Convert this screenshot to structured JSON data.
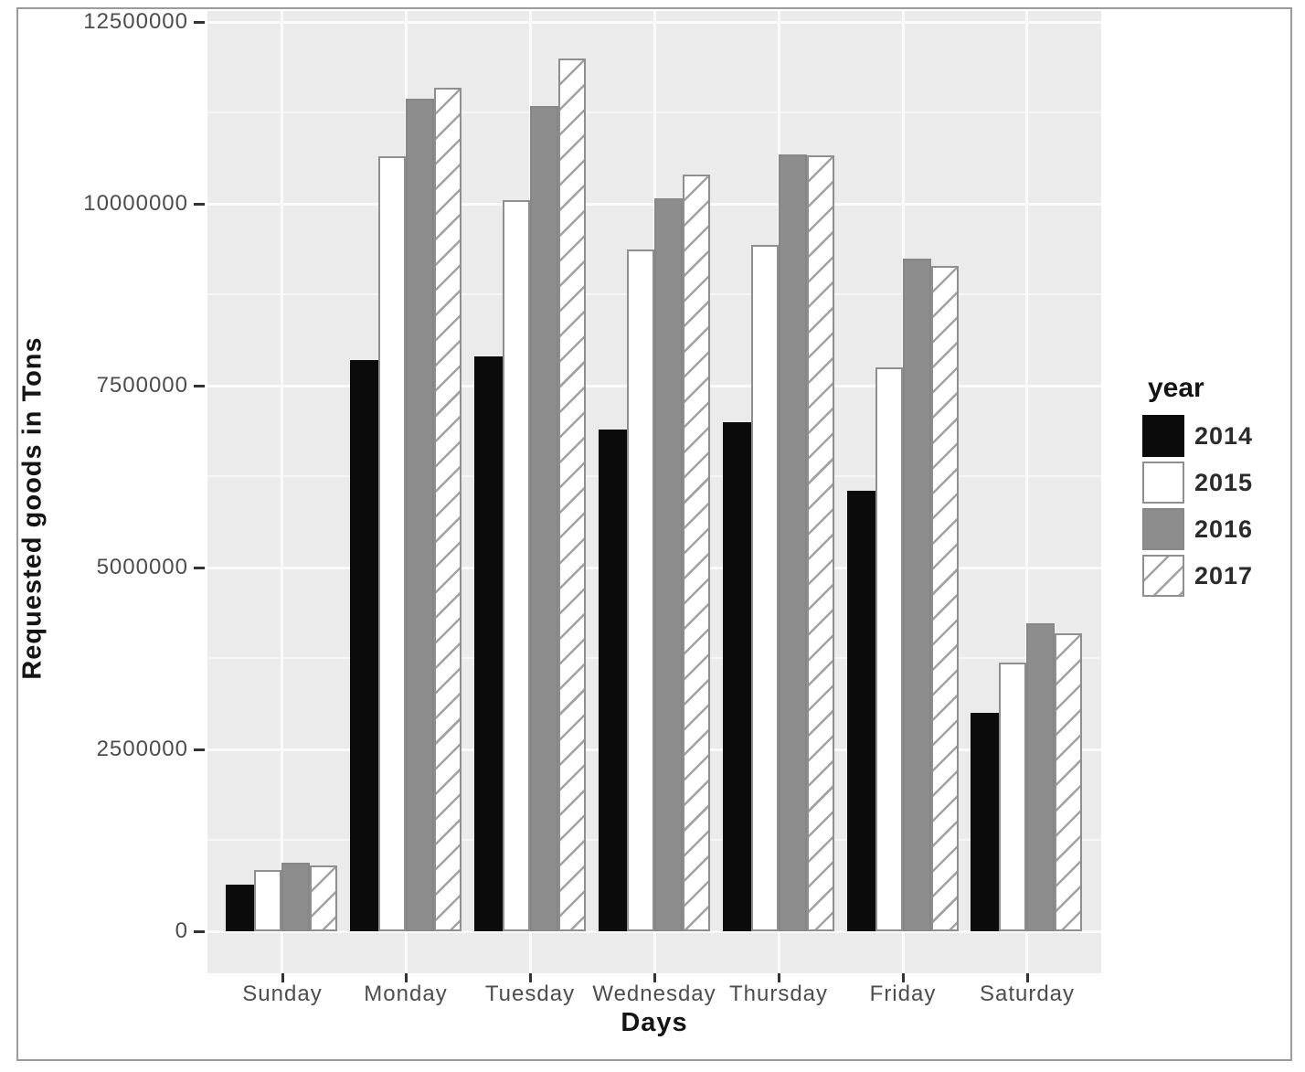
{
  "figure": {
    "background": "#ffffff",
    "frame_color": "#9b9b9b"
  },
  "panel": {
    "background": "#ebebeb",
    "grid_color": "#fafafa",
    "tick_color": "#333333",
    "tick_label_color": "#4d4d4d",
    "title_color": "#141414"
  },
  "chart_data": {
    "type": "bar",
    "title": "",
    "xlabel": "Days",
    "ylabel": "Requested goods in Tons",
    "legend_title": "year",
    "legend_position": "right",
    "grid": true,
    "categories": [
      "Sunday",
      "Monday",
      "Tuesday",
      "Wednesday",
      "Thursday",
      "Friday",
      "Saturday"
    ],
    "y_ticks": [
      0,
      2500000,
      5000000,
      7500000,
      10000000,
      12500000
    ],
    "y_tick_labels": [
      "0",
      "2500000",
      "5000000",
      "7500000",
      "10000000",
      "12500000"
    ],
    "ylim": [
      -580000,
      12650000
    ],
    "series": [
      {
        "name": "2014",
        "fill": "#0b0b0b",
        "stroke": "#0b0b0b",
        "pattern": "solid",
        "values": [
          640000,
          7850000,
          7900000,
          6900000,
          7000000,
          6050000,
          3000000
        ]
      },
      {
        "name": "2015",
        "fill": "#ffffff",
        "stroke": "#8f8f8f",
        "pattern": "solid",
        "values": [
          840000,
          10650000,
          10050000,
          9370000,
          9430000,
          7750000,
          3700000
        ]
      },
      {
        "name": "2016",
        "fill": "#8d8d8d",
        "stroke": "#878787",
        "pattern": "solid",
        "values": [
          940000,
          11450000,
          11350000,
          10080000,
          10680000,
          9250000,
          4230000
        ]
      },
      {
        "name": "2017",
        "fill": "#ffffff",
        "stroke": "#8f8f8f",
        "pattern": "hatch",
        "hatch_line_color": "#a2a2a2",
        "values": [
          900000,
          11600000,
          12000000,
          10400000,
          10670000,
          9150000,
          4100000
        ]
      }
    ]
  }
}
